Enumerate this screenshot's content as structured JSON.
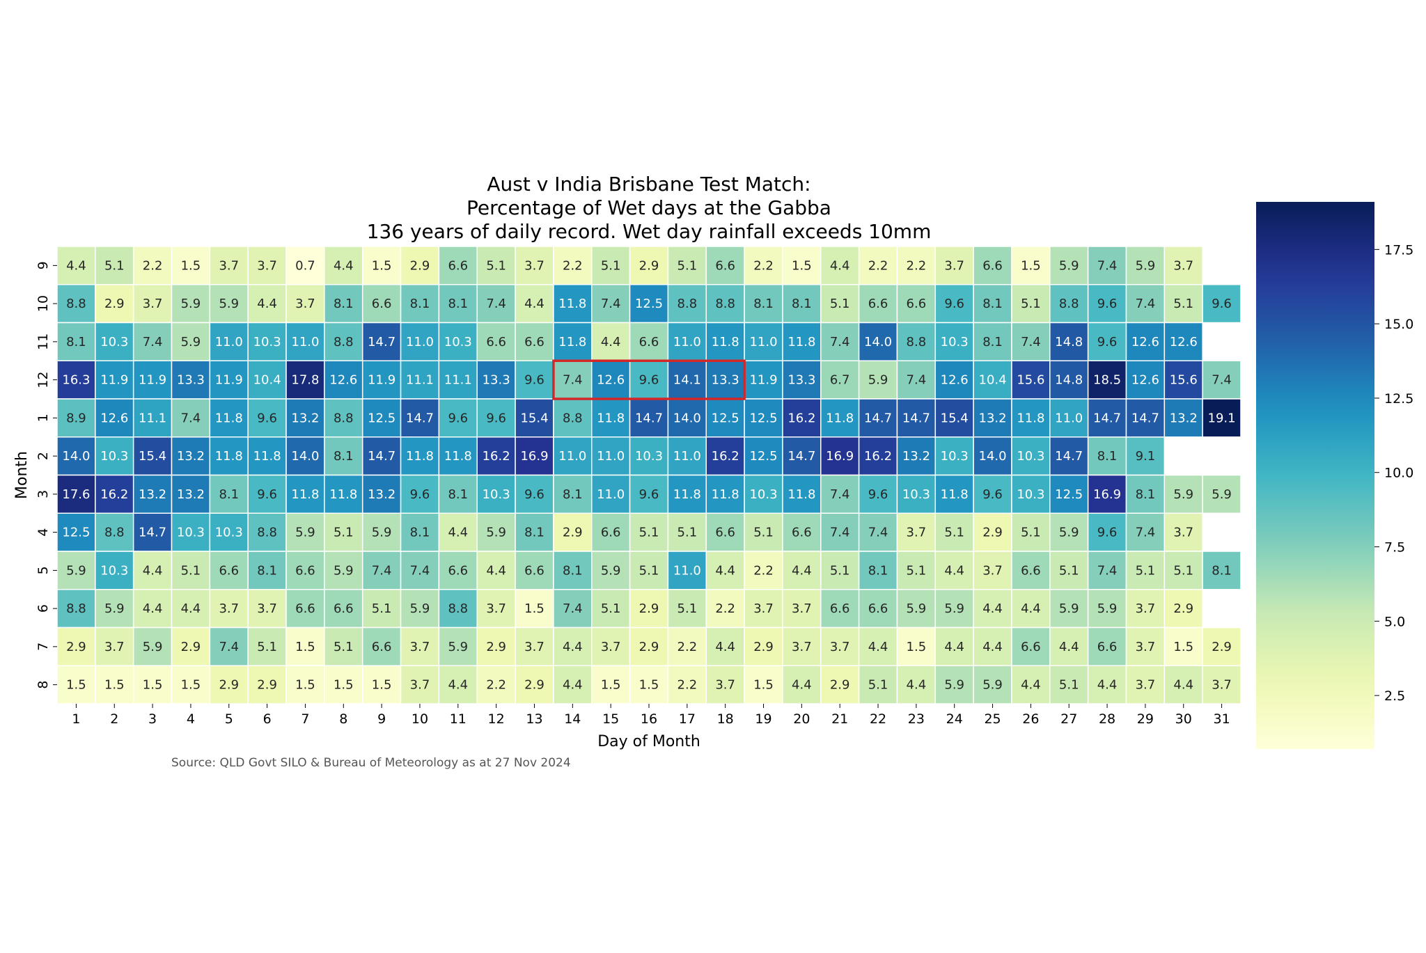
{
  "chart_data": {
    "type": "heatmap",
    "title_lines": [
      "Aust v India Brisbane Test Match:",
      "Percentage of Wet days at the Gabba",
      "136 years of daily record. Wet day rainfall exceeds 10mm"
    ],
    "xlabel": "Day of Month",
    "ylabel": "Month",
    "source": "Source: QLD Govt SILO & Bureau of Meteorology as at 27 Nov 2024",
    "x": [
      "1",
      "2",
      "3",
      "4",
      "5",
      "6",
      "7",
      "8",
      "9",
      "10",
      "11",
      "12",
      "13",
      "14",
      "15",
      "16",
      "17",
      "18",
      "19",
      "20",
      "21",
      "22",
      "23",
      "24",
      "25",
      "26",
      "27",
      "28",
      "29",
      "30",
      "31"
    ],
    "y": [
      "9",
      "10",
      "11",
      "12",
      "1",
      "2",
      "3",
      "4",
      "5",
      "6",
      "7",
      "8"
    ],
    "values": [
      [
        4.4,
        5.1,
        2.2,
        1.5,
        3.7,
        3.7,
        0.7,
        4.4,
        1.5,
        2.9,
        6.6,
        5.1,
        3.7,
        2.2,
        5.1,
        2.9,
        5.1,
        6.6,
        2.2,
        1.5,
        4.4,
        2.2,
        2.2,
        3.7,
        6.6,
        1.5,
        5.9,
        7.4,
        5.9,
        3.7,
        null
      ],
      [
        8.8,
        2.9,
        3.7,
        5.9,
        5.9,
        4.4,
        3.7,
        8.1,
        6.6,
        8.1,
        8.1,
        7.4,
        4.4,
        11.8,
        7.4,
        12.5,
        8.8,
        8.8,
        8.1,
        8.1,
        5.1,
        6.6,
        6.6,
        9.6,
        8.1,
        5.1,
        8.8,
        9.6,
        7.4,
        5.1,
        9.6
      ],
      [
        8.1,
        10.3,
        7.4,
        5.9,
        11.0,
        10.3,
        11.0,
        8.8,
        14.7,
        11.0,
        10.3,
        6.6,
        6.6,
        11.8,
        4.4,
        6.6,
        11.0,
        11.8,
        11.0,
        11.8,
        7.4,
        14.0,
        8.8,
        10.3,
        8.1,
        7.4,
        14.8,
        9.6,
        12.6,
        12.6,
        null
      ],
      [
        16.3,
        11.9,
        11.9,
        13.3,
        11.9,
        10.4,
        17.8,
        12.6,
        11.9,
        11.1,
        11.1,
        13.3,
        9.6,
        7.4,
        12.6,
        9.6,
        14.1,
        13.3,
        11.9,
        13.3,
        6.7,
        5.9,
        7.4,
        12.6,
        10.4,
        15.6,
        14.8,
        18.5,
        12.6,
        15.6,
        7.4
      ],
      [
        8.9,
        12.6,
        11.1,
        7.4,
        11.8,
        9.6,
        13.2,
        8.8,
        12.5,
        14.7,
        9.6,
        9.6,
        15.4,
        8.8,
        11.8,
        14.7,
        14.0,
        12.5,
        12.5,
        16.2,
        11.8,
        14.7,
        14.7,
        15.4,
        13.2,
        11.8,
        11.0,
        14.7,
        14.7,
        13.2,
        19.1
      ],
      [
        14.0,
        10.3,
        15.4,
        13.2,
        11.8,
        11.8,
        14.0,
        8.1,
        14.7,
        11.8,
        11.8,
        16.2,
        16.9,
        11.0,
        11.0,
        10.3,
        11.0,
        16.2,
        12.5,
        14.7,
        16.9,
        16.2,
        13.2,
        10.3,
        14.0,
        10.3,
        14.7,
        8.1,
        9.1,
        null,
        null
      ],
      [
        17.6,
        16.2,
        13.2,
        13.2,
        8.1,
        9.6,
        11.8,
        11.8,
        13.2,
        9.6,
        8.1,
        10.3,
        9.6,
        8.1,
        11.0,
        9.6,
        11.8,
        11.8,
        10.3,
        11.8,
        7.4,
        9.6,
        10.3,
        11.8,
        9.6,
        10.3,
        12.5,
        16.9,
        8.1,
        5.9,
        5.9
      ],
      [
        12.5,
        8.8,
        14.7,
        10.3,
        10.3,
        8.8,
        5.9,
        5.1,
        5.9,
        8.1,
        4.4,
        5.9,
        8.1,
        2.9,
        6.6,
        5.1,
        5.1,
        6.6,
        5.1,
        6.6,
        7.4,
        7.4,
        3.7,
        5.1,
        2.9,
        5.1,
        5.9,
        9.6,
        7.4,
        3.7,
        null
      ],
      [
        5.9,
        10.3,
        4.4,
        5.1,
        6.6,
        8.1,
        6.6,
        5.9,
        7.4,
        7.4,
        6.6,
        4.4,
        6.6,
        8.1,
        5.9,
        5.1,
        11.0,
        4.4,
        2.2,
        4.4,
        5.1,
        8.1,
        5.1,
        4.4,
        3.7,
        6.6,
        5.1,
        7.4,
        5.1,
        5.1,
        8.1
      ],
      [
        8.8,
        5.9,
        4.4,
        4.4,
        3.7,
        3.7,
        6.6,
        6.6,
        5.1,
        5.9,
        8.8,
        3.7,
        1.5,
        7.4,
        5.1,
        2.9,
        5.1,
        2.2,
        3.7,
        3.7,
        6.6,
        6.6,
        5.9,
        5.9,
        4.4,
        4.4,
        5.9,
        5.9,
        3.7,
        2.9,
        null
      ],
      [
        2.9,
        3.7,
        5.9,
        2.9,
        7.4,
        5.1,
        1.5,
        5.1,
        6.6,
        3.7,
        5.9,
        2.9,
        3.7,
        4.4,
        3.7,
        2.9,
        2.2,
        4.4,
        2.9,
        3.7,
        3.7,
        4.4,
        1.5,
        4.4,
        4.4,
        6.6,
        4.4,
        6.6,
        3.7,
        1.5,
        2.9
      ],
      [
        1.5,
        1.5,
        1.5,
        1.5,
        2.9,
        2.9,
        1.5,
        1.5,
        1.5,
        3.7,
        4.4,
        2.2,
        2.9,
        4.4,
        1.5,
        1.5,
        2.2,
        3.7,
        1.5,
        4.4,
        2.9,
        5.1,
        4.4,
        5.9,
        5.9,
        4.4,
        5.1,
        4.4,
        3.7,
        4.4,
        3.7
      ]
    ],
    "colormap": "YlGnBu",
    "vmin": 0.7,
    "vmax": 19.1,
    "colorbar_ticks": [
      "2.5",
      "5.0",
      "7.5",
      "10.0",
      "12.5",
      "15.0",
      "17.5"
    ],
    "highlight": {
      "row_label": "12",
      "from_day": "14",
      "to_day": "18",
      "color": "#d62728"
    }
  }
}
